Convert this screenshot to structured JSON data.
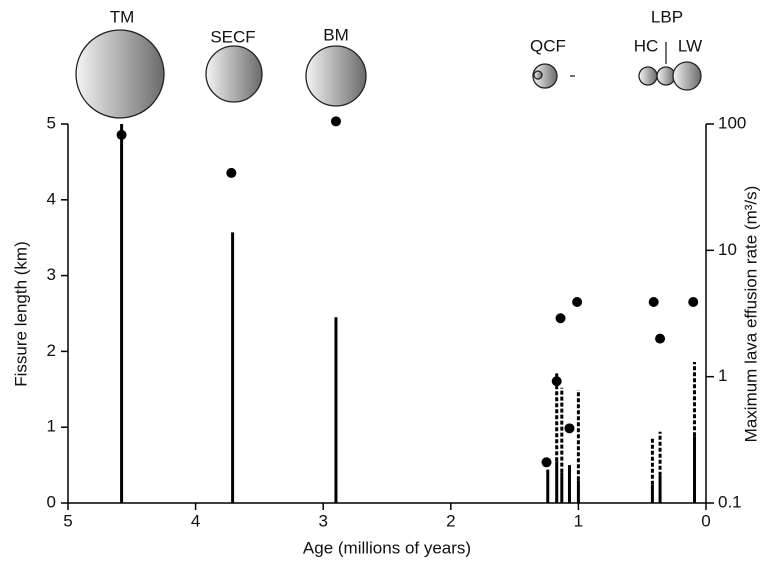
{
  "chart_data": {
    "type": "fissure-effusion",
    "x_label": "Age (millions of years)",
    "y_label": "Fissure length (km)",
    "y2_label": "Maximum lava effusion rate (m³/s)",
    "annotations": [
      "TM",
      "SECF",
      "BM",
      "QCF",
      "LBP",
      "HC",
      "LW"
    ],
    "xlim": [
      5,
      0
    ],
    "xticks": [
      5,
      4,
      3,
      2,
      1,
      0
    ],
    "ylim": [
      0,
      5
    ],
    "yticks": [
      0,
      1,
      2,
      3,
      4,
      5
    ],
    "y2lim": [
      0.1,
      100
    ],
    "y2ticks": [
      0.1,
      1,
      10,
      100
    ],
    "y2_log": true,
    "x": [
      4.58,
      3.71,
      2.9,
      1.24,
      1.17,
      1.13,
      1.07,
      1.0,
      0.42,
      0.36,
      0.09
    ],
    "length": [
      5.0,
      3.57,
      2.45,
      0.44,
      0.55,
      0.4,
      0.5,
      0.3,
      0.24,
      0.36,
      0.88
    ],
    "length_upper": [
      null,
      null,
      null,
      null,
      1.71,
      1.52,
      null,
      1.49,
      0.87,
      0.94,
      1.86
    ],
    "rate_x": [
      4.58,
      3.72,
      2.9,
      1.25,
      1.17,
      1.14,
      1.07,
      1.01,
      0.41,
      0.36,
      0.1
    ],
    "rate": [
      82,
      41,
      105,
      0.21,
      0.92,
      2.9,
      0.39,
      3.9,
      3.9,
      2.0,
      3.9
    ],
    "color": "#000000"
  }
}
